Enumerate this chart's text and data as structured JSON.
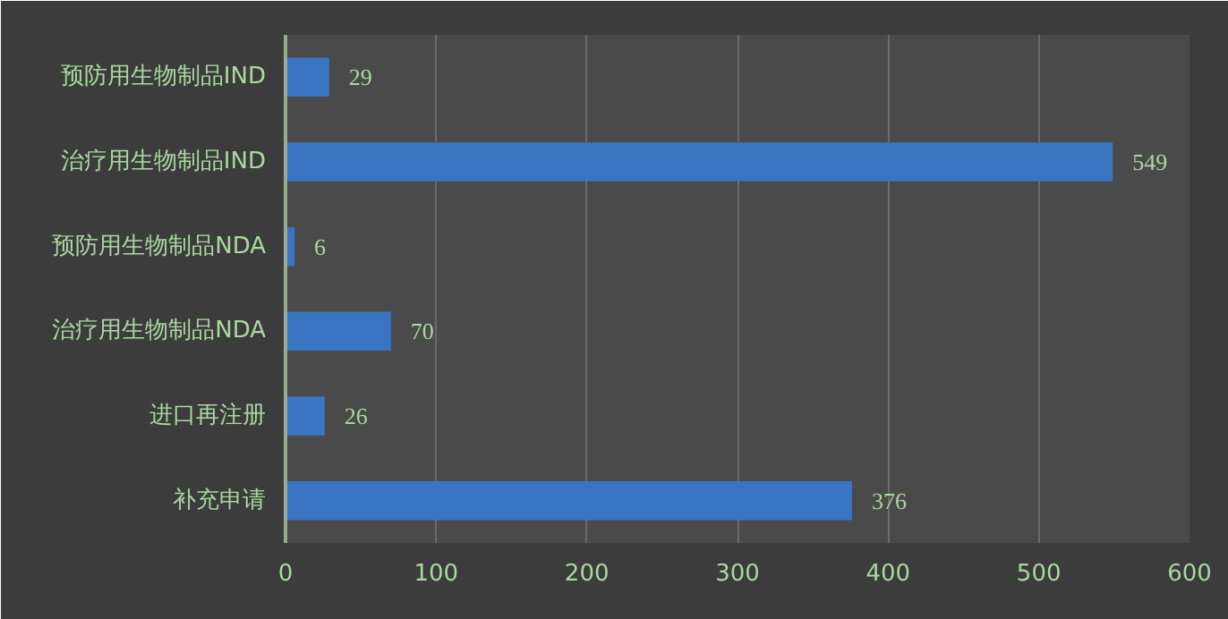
{
  "chart_data": {
    "type": "bar",
    "orientation": "horizontal",
    "categories": [
      "预防用生物制品IND",
      "治疗用生物制品IND",
      "预防用生物制品NDA",
      "治疗用生物制品NDA",
      "进口再注册",
      "补充申请"
    ],
    "values": [
      29,
      549,
      6,
      70,
      26,
      376
    ],
    "color": "#3a75c4",
    "xlim": [
      0,
      600
    ],
    "xticks": [
      0,
      100,
      200,
      300,
      400,
      500,
      600
    ],
    "grid": "x",
    "data_labels": true
  }
}
